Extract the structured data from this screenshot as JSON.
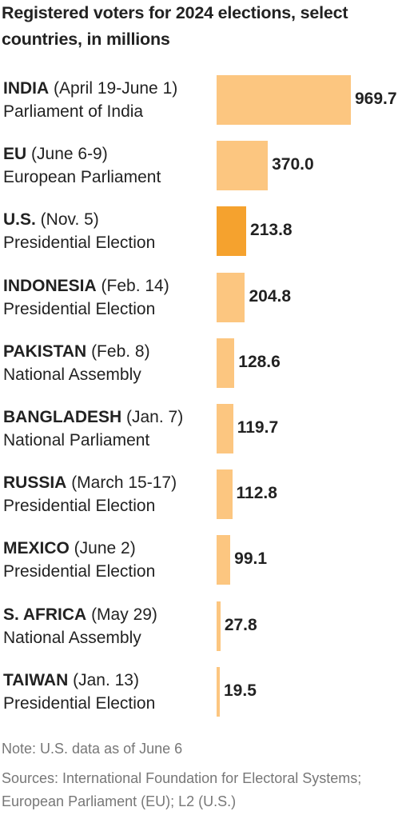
{
  "chart_data": {
    "type": "bar",
    "orientation": "horizontal",
    "title": "Registered voters for 2024 elections, select countries, in millions",
    "categories": [
      "INDIA",
      "EU",
      "U.S.",
      "INDONESIA",
      "PAKISTAN",
      "BANGLADESH",
      "RUSSIA",
      "MEXICO",
      "S. AFRICA",
      "TAIWAN"
    ],
    "dates": [
      "(April 19-June 1)",
      "(June 6-9)",
      "(Nov. 5)",
      "(Feb. 14)",
      "(Feb. 8)",
      "(Jan. 7)",
      "(March 15-17)",
      "(June 2)",
      "(May 29)",
      "(Jan. 13)"
    ],
    "elections": [
      "Parliament of India",
      "European Parliament",
      "Presidential Election",
      "Presidential Election",
      "National Assembly",
      "National Parliament",
      "Presidential Election",
      "Presidential Election",
      "National Assembly",
      "Presidential Election"
    ],
    "values": [
      969.7,
      370.0,
      213.8,
      204.8,
      128.6,
      119.7,
      112.8,
      99.1,
      27.8,
      19.5
    ],
    "value_labels": [
      "969.7",
      "370.0",
      "213.8",
      "204.8",
      "128.6",
      "119.7",
      "112.8",
      "99.1",
      "27.8",
      "19.5"
    ],
    "highlight": "U.S.",
    "colors": {
      "default": "#FCC680",
      "highlight": "#F5A22E"
    },
    "xlim": [
      0,
      969.7
    ],
    "grid": false,
    "note": "Note: U.S. data as of June 6",
    "sources": "Sources: International Foundation for Electoral Systems; European Parliament (EU); L2 (U.S.)"
  }
}
